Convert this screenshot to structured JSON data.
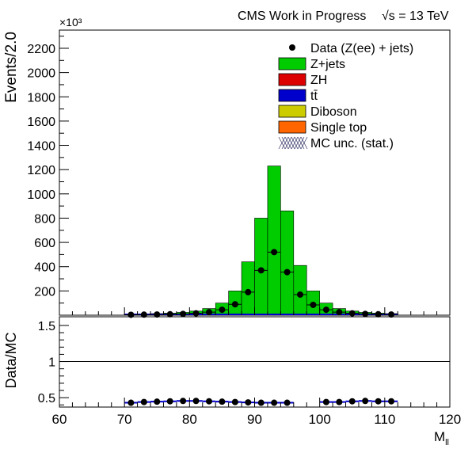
{
  "chart_data": {
    "type": "bar",
    "header": {
      "experiment": "CMS Work in Progress",
      "energy": "√s = 13 TeV"
    },
    "top_panel": {
      "ylabel": "Events/2.0",
      "exponent_label": "×10³",
      "ylim": [
        0,
        2350000
      ],
      "yticks": [
        200,
        400,
        600,
        800,
        1000,
        1200,
        1400,
        1600,
        1800,
        2000,
        2200
      ],
      "ytick_scale": 1000
    },
    "bottom_panel": {
      "ylabel": "Data/MC",
      "ylim": [
        0.37,
        1.62
      ],
      "yticks": [
        "0.5",
        "1",
        "1.5"
      ],
      "reference_line": 1.0
    },
    "xlabel": "M_ll",
    "xlim": [
      60,
      120
    ],
    "xticks": [
      60,
      70,
      80,
      90,
      100,
      110,
      120
    ],
    "bin_edges": [
      70,
      72,
      74,
      76,
      78,
      80,
      82,
      84,
      86,
      88,
      90,
      92,
      94,
      96,
      98,
      100,
      102,
      104,
      106,
      108,
      110,
      112
    ],
    "mc_stack": [
      {
        "name": "Z+jets",
        "color": "#00cc00",
        "values": [
          8000,
          10000,
          13000,
          17000,
          23000,
          34000,
          55000,
          100000,
          200000,
          440000,
          800000,
          1230000,
          860000,
          410000,
          200000,
          100000,
          55000,
          34000,
          23000,
          17000,
          13000
        ]
      },
      {
        "name": "ZH",
        "color": "#dd0000",
        "values": []
      },
      {
        "name": "tt̄",
        "color": "#0000cc",
        "values": []
      },
      {
        "name": "Diboson",
        "color": "#cccc00",
        "values": []
      },
      {
        "name": "Single top",
        "color": "#ff6600",
        "values": []
      }
    ],
    "data": {
      "name": "Data (Z(ee) + jets)",
      "values": [
        3500,
        4500,
        6000,
        8000,
        11000,
        15500,
        25000,
        45000,
        90000,
        190000,
        370000,
        520000,
        355000,
        170000,
        85000,
        45000,
        25000,
        15500,
        11000,
        8000,
        6000
      ]
    },
    "mc_unc_label": "MC unc. (stat.)",
    "ratio": [
      0.43,
      0.44,
      0.445,
      0.45,
      0.455,
      0.455,
      0.45,
      0.445,
      0.44,
      0.435,
      0.43,
      0.43,
      0.43,
      null,
      null,
      0.44,
      0.44,
      0.45,
      0.455,
      0.45,
      0.45
    ],
    "legend_position": "top-right",
    "grid": false
  }
}
